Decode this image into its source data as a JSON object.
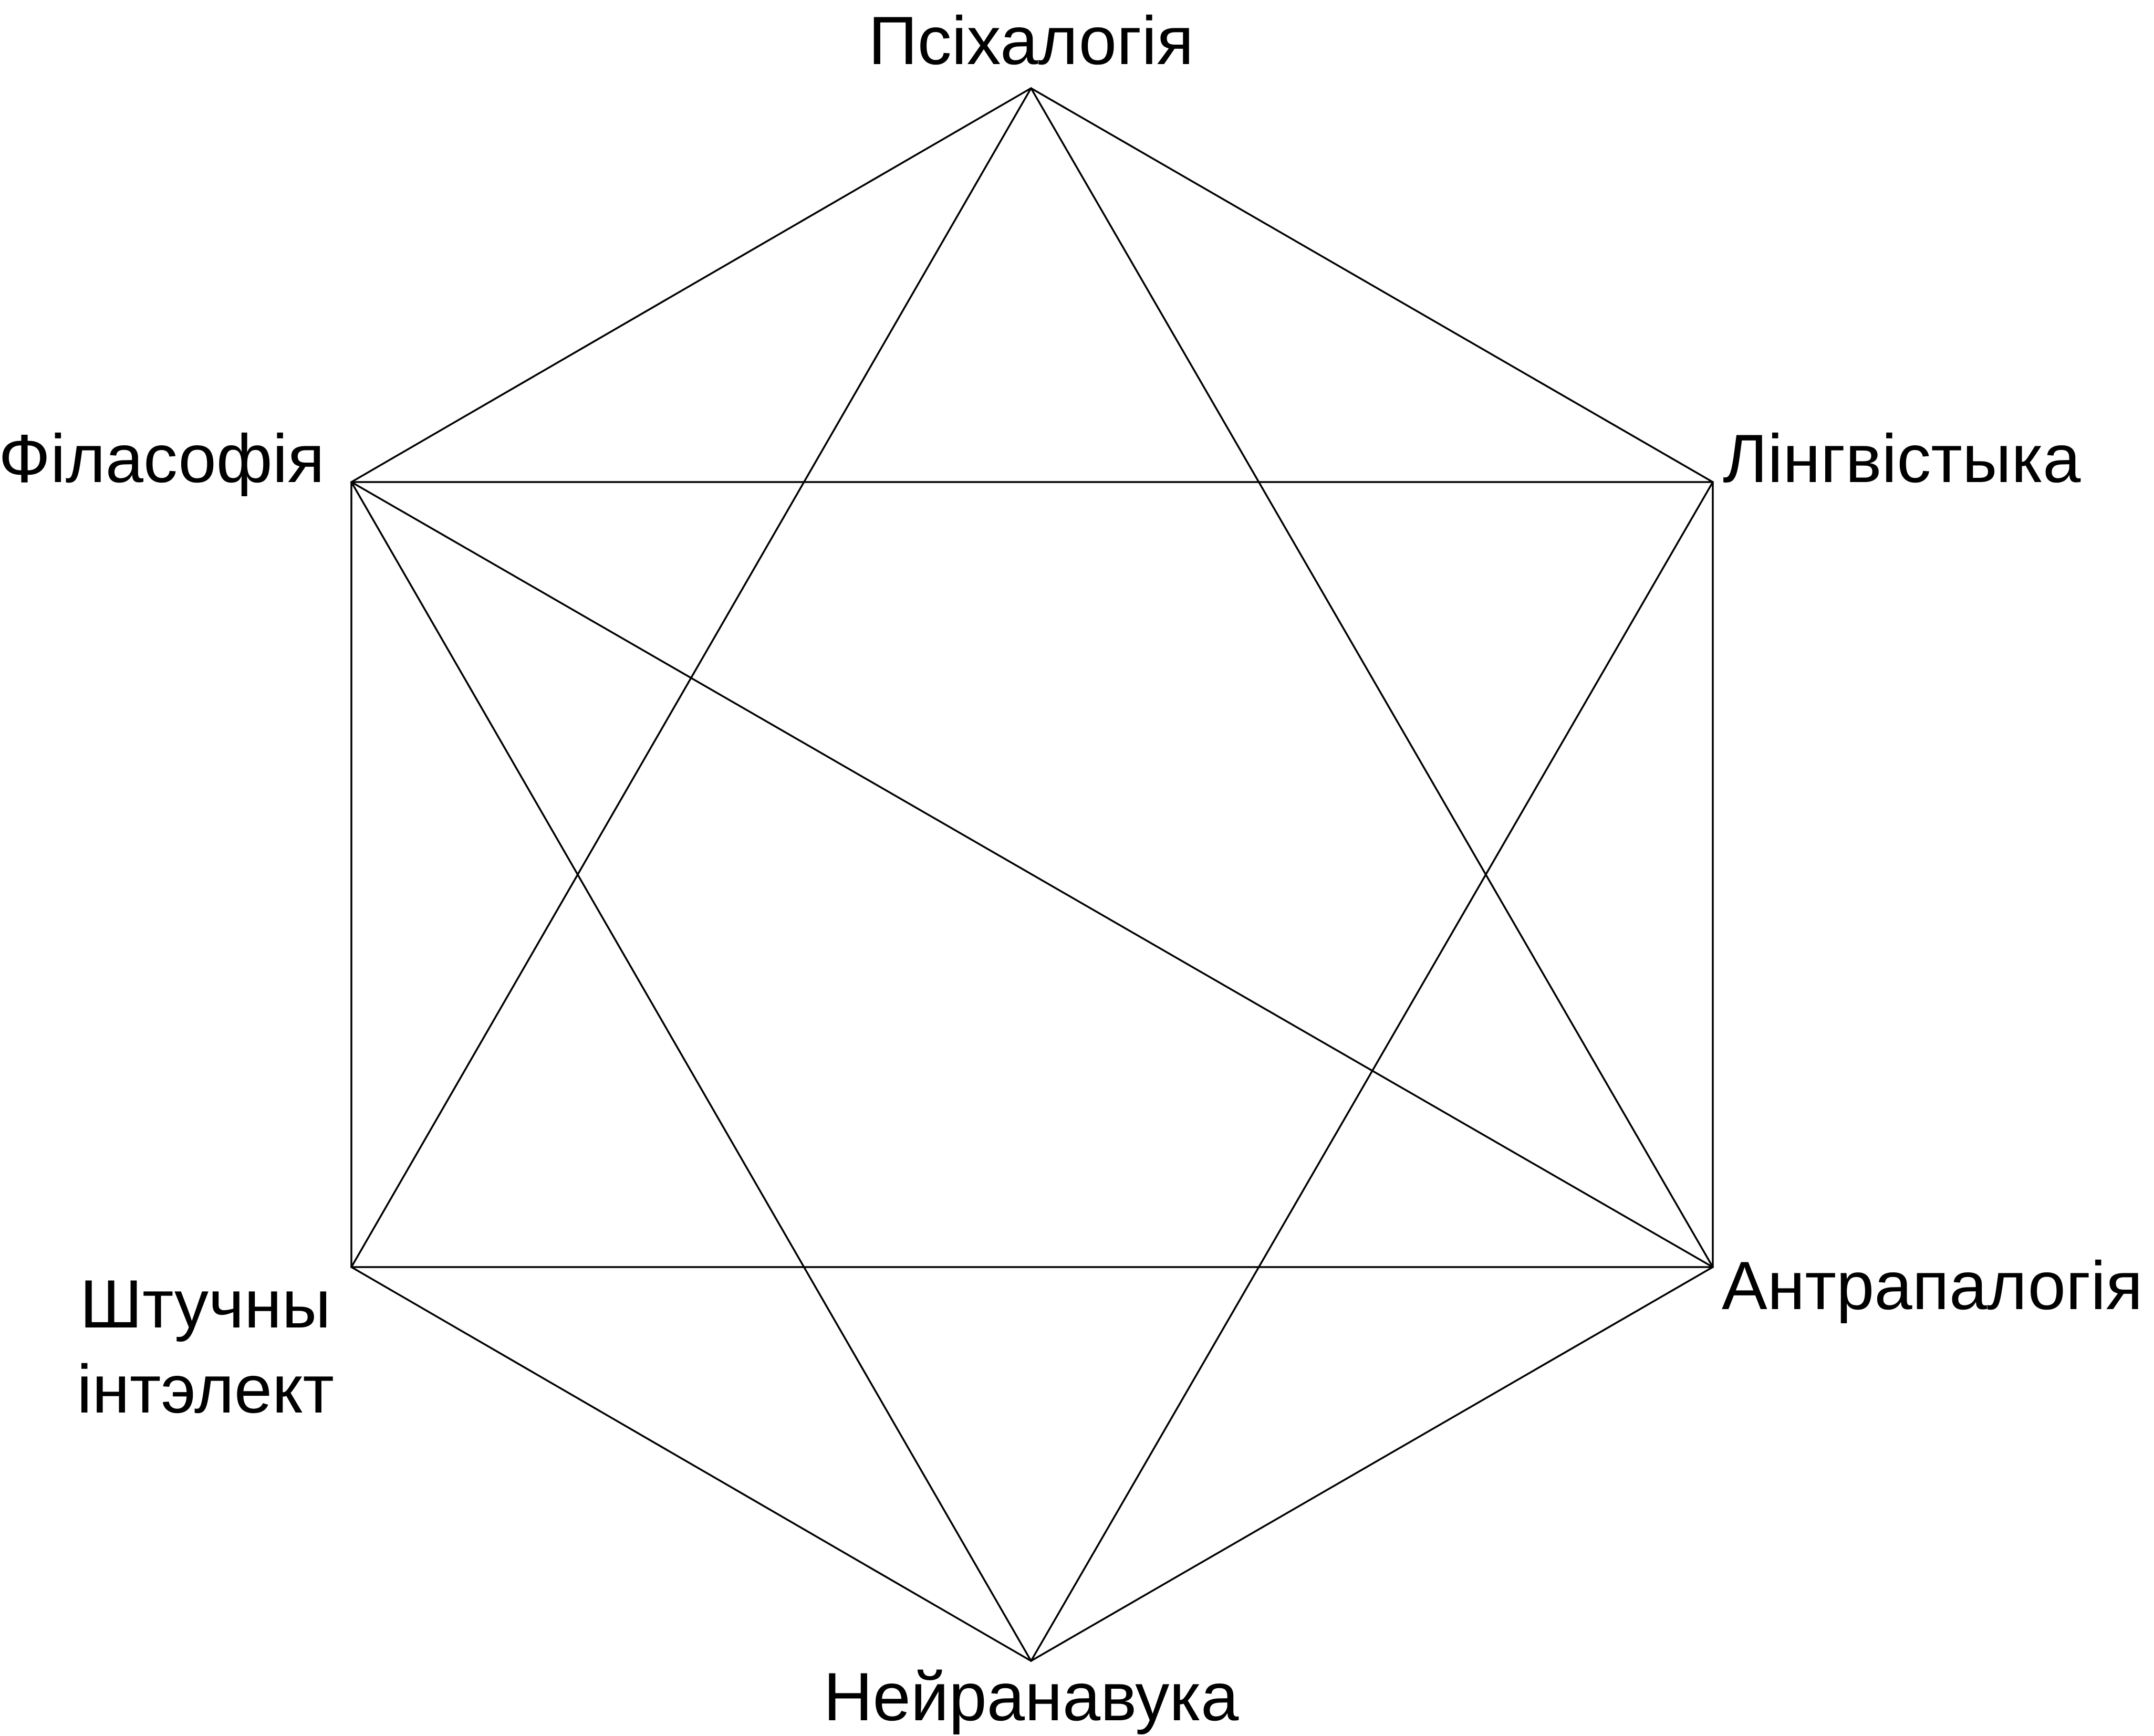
{
  "diagram": {
    "title": "",
    "nodes": [
      {
        "id": "psychology",
        "label": "Псіхалогія"
      },
      {
        "id": "linguistics",
        "label": "Лінгвістыка"
      },
      {
        "id": "anthropology",
        "label": "Антрапалогія"
      },
      {
        "id": "neuroscience",
        "label": "Нейранавука"
      },
      {
        "id": "ai",
        "label_line1": "Штучны",
        "label_line2": "інтэлект"
      },
      {
        "id": "philosophy",
        "label": "Філасофія"
      }
    ],
    "edges": [
      [
        "psychology",
        "linguistics"
      ],
      [
        "linguistics",
        "anthropology"
      ],
      [
        "anthropology",
        "neuroscience"
      ],
      [
        "neuroscience",
        "ai"
      ],
      [
        "ai",
        "philosophy"
      ],
      [
        "philosophy",
        "psychology"
      ],
      [
        "psychology",
        "anthropology"
      ],
      [
        "anthropology",
        "ai"
      ],
      [
        "ai",
        "psychology"
      ],
      [
        "philosophy",
        "linguistics"
      ],
      [
        "linguistics",
        "neuroscience"
      ],
      [
        "neuroscience",
        "philosophy"
      ],
      [
        "philosophy",
        "anthropology"
      ]
    ],
    "colors": {
      "line": "#000000",
      "text": "#000000",
      "background": "#ffffff"
    }
  }
}
